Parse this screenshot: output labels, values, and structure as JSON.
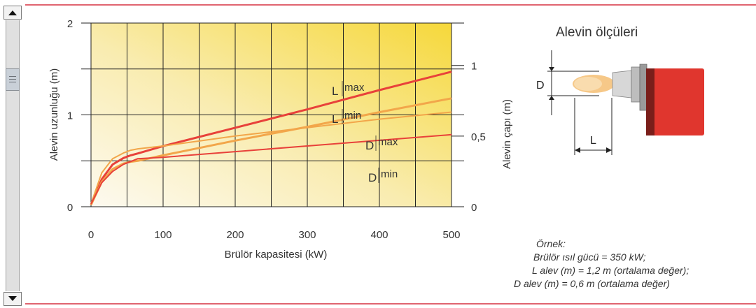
{
  "chart_data": {
    "type": "line",
    "xlabel": "Brülör kapasitesi (kW)",
    "ylabel": "Alevin uzunluğu (m)",
    "y2label": "Alevin çapı (m)",
    "x_ticks": [
      "0",
      "100",
      "200",
      "300",
      "400",
      "500"
    ],
    "y_ticks": [
      "0",
      "1",
      "2"
    ],
    "y2_ticks": [
      "0",
      "0,5",
      "1"
    ],
    "xlim": [
      0,
      500
    ],
    "ylim": [
      0,
      2
    ],
    "y2lim": [
      0,
      1.3
    ],
    "grid": true,
    "series": [
      {
        "name": "L",
        "sub": "max",
        "axis": "left",
        "color": "#e8413a",
        "x": [
          0,
          15,
          30,
          45,
          55,
          65,
          100,
          200,
          300,
          400,
          500
        ],
        "y": [
          0.02,
          0.3,
          0.46,
          0.53,
          0.56,
          0.58,
          0.66,
          0.86,
          1.06,
          1.27,
          1.47
        ]
      },
      {
        "name": "L",
        "sub": "min",
        "axis": "left",
        "color": "#f2a64a",
        "x": [
          0,
          15,
          30,
          45,
          55,
          65,
          100,
          200,
          300,
          400,
          500
        ],
        "y": [
          0.02,
          0.27,
          0.41,
          0.47,
          0.49,
          0.5,
          0.56,
          0.72,
          0.87,
          1.03,
          1.18
        ]
      },
      {
        "name": "D",
        "sub": "max",
        "axis": "right",
        "color": "#f2a64a",
        "x": [
          0,
          15,
          30,
          45,
          55,
          65,
          100,
          200,
          300,
          400,
          500
        ],
        "y": [
          0.02,
          0.24,
          0.34,
          0.38,
          0.4,
          0.41,
          0.43,
          0.5,
          0.56,
          0.62,
          0.67
        ]
      },
      {
        "name": "D",
        "sub": "min",
        "axis": "right",
        "color": "#e8413a",
        "x": [
          0,
          15,
          30,
          45,
          55,
          65,
          100,
          200,
          300,
          400,
          500
        ],
        "y": [
          0.02,
          0.17,
          0.25,
          0.3,
          0.32,
          0.34,
          0.35,
          0.39,
          0.43,
          0.47,
          0.51
        ]
      }
    ]
  },
  "diagram": {
    "title": "Alevin ölçüleri",
    "d_label": "D",
    "l_label": "L"
  },
  "example": {
    "title": "Örnek:",
    "line1": "Brülör ısıl gücü = 350 kW;",
    "line2": "L alev (m) = 1,2 m (ortalama değer);",
    "line3": "D alev (m) = 0,6 m (ortalama değer)"
  },
  "colors": {
    "frame": "#e06470",
    "burner_red": "#e0362e",
    "gradient_light": "#fbf6e6",
    "gradient_yellow": "#f6d83a"
  },
  "scrollbar": {
    "up_icon": "arrow-up-icon",
    "down_icon": "arrow-down-icon",
    "thumb_icon": "grip-icon"
  }
}
